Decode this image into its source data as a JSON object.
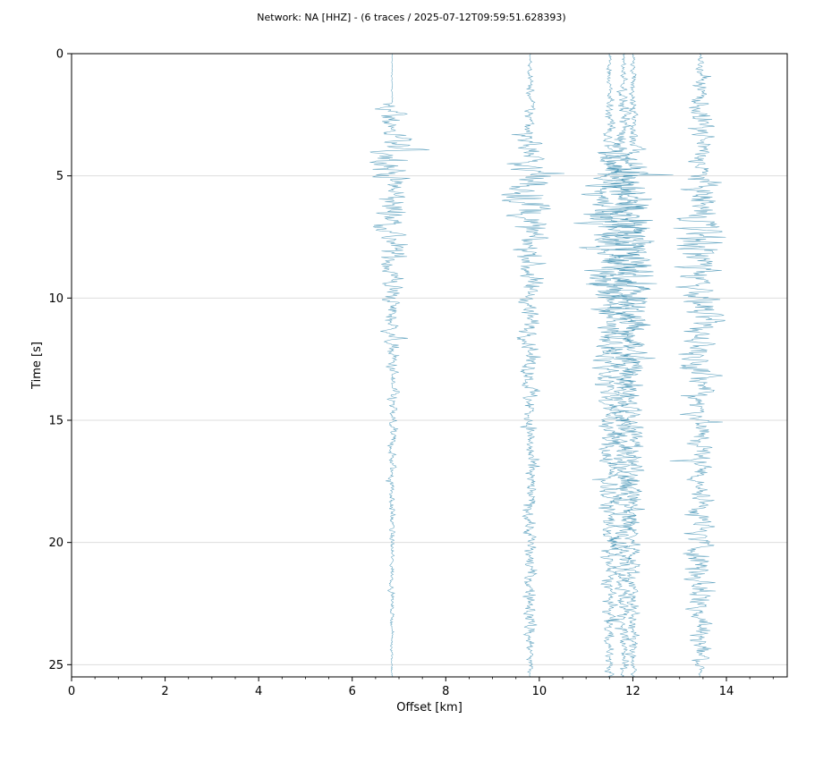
{
  "title": "Network: NA [HHZ] - (6 traces / 2025-07-12T09:59:51.628393)",
  "chart_data": {
    "type": "line",
    "subtype": "seismic-record-section",
    "xlabel": "Offset [km]",
    "ylabel": "Time [s]",
    "xlim": [
      0,
      15.3
    ],
    "ylim": [
      25.5,
      0
    ],
    "y_inverted": true,
    "grid": "horizontal",
    "xticks": [
      0,
      2,
      4,
      6,
      8,
      10,
      12,
      14
    ],
    "yticks": [
      0,
      5,
      10,
      15,
      20,
      25
    ],
    "trace_color": "#2e86ab",
    "grid_color": "#dddddd",
    "traces": [
      {
        "offset": 6.85,
        "amp_envelope": [
          [
            0,
            0.02
          ],
          [
            2,
            0.05
          ],
          [
            2.2,
            1.2
          ],
          [
            3,
            0.6
          ],
          [
            4,
            1.4
          ],
          [
            5,
            1.0
          ],
          [
            7,
            0.9
          ],
          [
            8.5,
            0.8
          ],
          [
            10,
            0.5
          ],
          [
            13,
            0.35
          ],
          [
            15,
            0.25
          ],
          [
            20,
            0.15
          ],
          [
            25.5,
            0.05
          ]
        ]
      },
      {
        "offset": 9.8,
        "amp_envelope": [
          [
            0,
            0.05
          ],
          [
            3,
            0.4
          ],
          [
            5,
            1.4
          ],
          [
            6,
            1.5
          ],
          [
            7,
            1.0
          ],
          [
            9,
            0.7
          ],
          [
            12,
            0.5
          ],
          [
            15,
            0.4
          ],
          [
            20,
            0.35
          ],
          [
            24,
            0.4
          ],
          [
            25.5,
            0.1
          ]
        ]
      },
      {
        "offset": 11.5,
        "amp_envelope": [
          [
            0,
            0.1
          ],
          [
            3,
            0.3
          ],
          [
            5,
            1.2
          ],
          [
            7,
            1.6
          ],
          [
            10,
            1.0
          ],
          [
            14,
            0.7
          ],
          [
            20,
            0.5
          ],
          [
            25.5,
            0.2
          ]
        ]
      },
      {
        "offset": 11.8,
        "amp_envelope": [
          [
            0,
            0.1
          ],
          [
            3,
            0.4
          ],
          [
            5,
            1.5
          ],
          [
            8,
            1.7
          ],
          [
            10,
            1.2
          ],
          [
            14,
            0.8
          ],
          [
            20,
            0.6
          ],
          [
            25.5,
            0.2
          ]
        ]
      },
      {
        "offset": 12.0,
        "amp_envelope": [
          [
            0,
            0.1
          ],
          [
            3,
            0.3
          ],
          [
            5,
            1.2
          ],
          [
            8,
            1.4
          ],
          [
            10,
            1.0
          ],
          [
            14,
            0.7
          ],
          [
            20,
            0.5
          ],
          [
            25.5,
            0.2
          ]
        ]
      },
      {
        "offset": 13.45,
        "amp_envelope": [
          [
            0,
            0.1
          ],
          [
            3,
            0.8
          ],
          [
            5,
            0.7
          ],
          [
            7,
            1.4
          ],
          [
            8,
            1.5
          ],
          [
            10,
            1.0
          ],
          [
            13.5,
            1.1
          ],
          [
            16,
            0.7
          ],
          [
            20,
            0.8
          ],
          [
            22.5,
            0.9
          ],
          [
            24,
            0.8
          ],
          [
            25.2,
            0.2
          ]
        ]
      }
    ]
  }
}
